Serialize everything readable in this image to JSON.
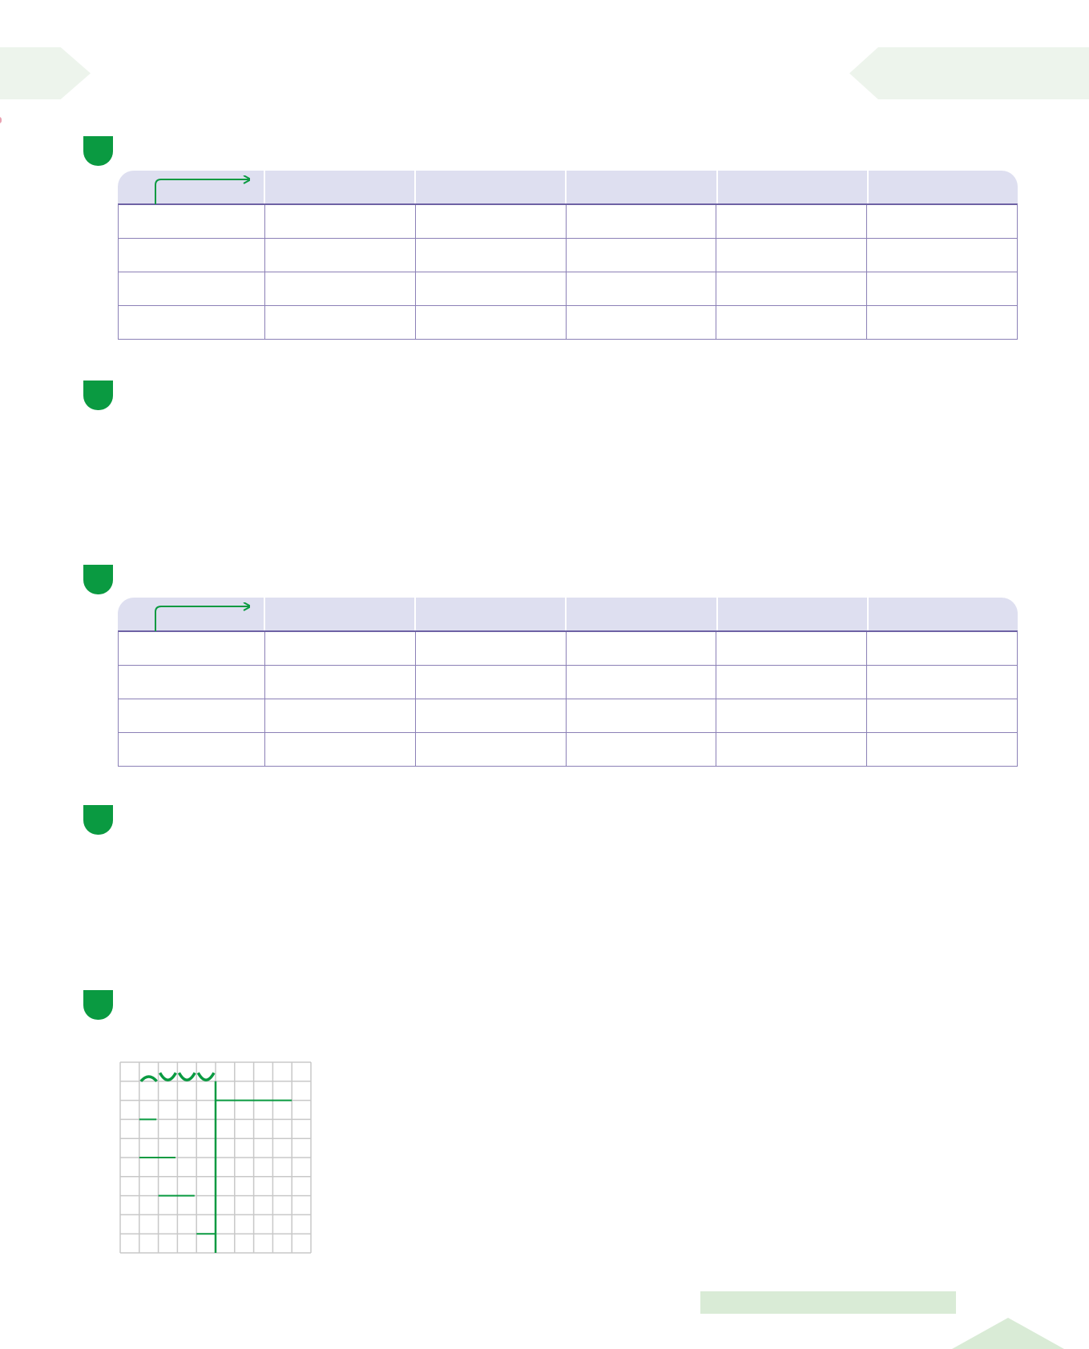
{
  "colors": {
    "accent_green": "#0a9a41",
    "table_header_bg": "#dedff0",
    "table_border": "#8b80b6",
    "banner_bg": "#edf4ec",
    "footer_bar": "#d9ebd6",
    "grid_line": "#c8c8c8"
  },
  "sections": [
    {
      "marker_icon": "green-tab-icon"
    },
    {
      "marker_icon": "green-tab-icon"
    },
    {
      "marker_icon": "green-tab-icon"
    },
    {
      "marker_icon": "green-tab-icon"
    },
    {
      "marker_icon": "green-tab-icon"
    }
  ],
  "tables": [
    {
      "columns": 6,
      "rows": 4,
      "header_icon": "corner-arrow-icon"
    },
    {
      "columns": 6,
      "rows": 4,
      "header_icon": "corner-arrow-icon"
    }
  ],
  "grid": {
    "columns": 10,
    "rows": 10
  }
}
